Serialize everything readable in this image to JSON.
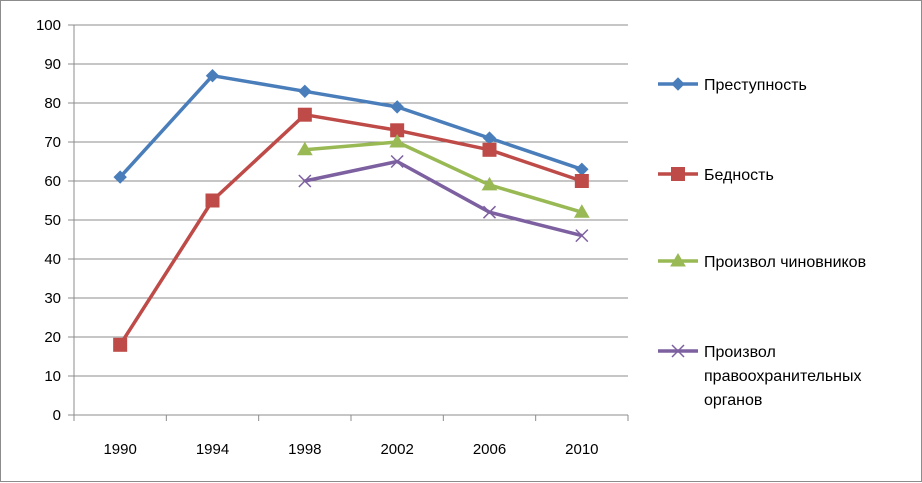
{
  "chart_data": {
    "type": "line",
    "title": "",
    "xlabel": "",
    "ylabel": "",
    "categories": [
      "1990",
      "1994",
      "1998",
      "2002",
      "2006",
      "2010"
    ],
    "ylim": [
      0,
      100
    ],
    "yticks": [
      "0",
      "10",
      "20",
      "30",
      "40",
      "50",
      "60",
      "70",
      "80",
      "90",
      "100"
    ],
    "grid": true,
    "legend_position": "right",
    "series": [
      {
        "name": "Преступность",
        "legend_lines": [
          "Преступность"
        ],
        "color": "#4a7ebb",
        "marker": "diamond",
        "values": [
          61,
          87,
          83,
          79,
          71,
          63
        ]
      },
      {
        "name": "Бедность",
        "legend_lines": [
          "Бедность"
        ],
        "color": "#be4b48",
        "marker": "square",
        "values": [
          18,
          55,
          77,
          73,
          68,
          60
        ]
      },
      {
        "name": "Произвол чиновников",
        "legend_lines": [
          "Произвол чиновников"
        ],
        "color": "#98b954",
        "marker": "triangle",
        "values": [
          null,
          null,
          68,
          70,
          59,
          52
        ]
      },
      {
        "name": "Произвол правоохранительных органов",
        "legend_lines": [
          "Произвол",
          "правоохранительных",
          "органов"
        ],
        "color": "#7d60a0",
        "marker": "x",
        "values": [
          null,
          null,
          60,
          65,
          52,
          46
        ]
      }
    ]
  }
}
